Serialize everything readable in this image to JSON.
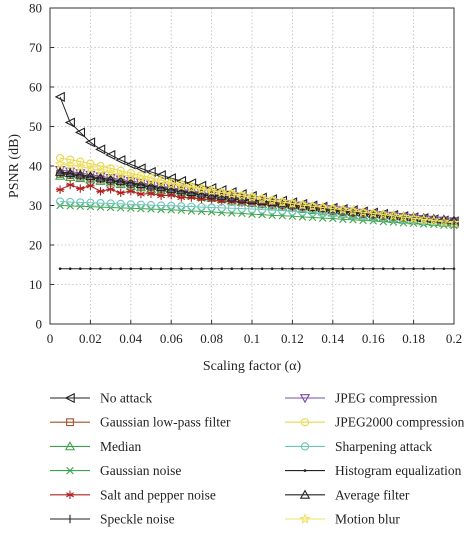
{
  "chart_data": {
    "type": "line",
    "xlabel": "Scaling factor (α)",
    "ylabel": "PSNR (dB)",
    "xlim": [
      0,
      0.2
    ],
    "ylim": [
      0,
      80
    ],
    "xticks": [
      0,
      0.02,
      0.04,
      0.06,
      0.08,
      0.1,
      0.12,
      0.14,
      0.16,
      0.18,
      0.2
    ],
    "xtick_labels": [
      "0",
      "0.02",
      "0.04",
      "0.06",
      "0.08",
      "0.1",
      "0.12",
      "0.14",
      "0.16",
      "0.18",
      "0.2"
    ],
    "yticks": [
      0,
      10,
      20,
      30,
      40,
      50,
      60,
      70,
      80
    ],
    "ytick_labels": [
      "0",
      "10",
      "20",
      "30",
      "40",
      "50",
      "60",
      "70",
      "80"
    ],
    "grid": true,
    "legend_position": "bottom",
    "x": [
      0.005,
      0.01,
      0.015,
      0.02,
      0.025,
      0.03,
      0.035,
      0.04,
      0.045,
      0.05,
      0.055,
      0.06,
      0.065,
      0.07,
      0.075,
      0.08,
      0.085,
      0.09,
      0.095,
      0.1,
      0.105,
      0.11,
      0.115,
      0.12,
      0.125,
      0.13,
      0.135,
      0.14,
      0.145,
      0.15,
      0.155,
      0.16,
      0.165,
      0.17,
      0.175,
      0.18,
      0.185,
      0.19,
      0.195,
      0.2
    ],
    "series": [
      {
        "name": "No attack",
        "marker": "tri-left",
        "color": "#222222",
        "values": [
          57.5,
          51.0,
          48.5,
          46.0,
          44.2,
          42.8,
          41.5,
          40.4,
          39.4,
          38.5,
          37.7,
          36.9,
          36.2,
          35.6,
          35.0,
          34.4,
          33.9,
          33.4,
          32.9,
          32.4,
          32.0,
          31.6,
          31.2,
          30.8,
          30.4,
          30.0,
          29.7,
          29.4,
          29.1,
          28.8,
          28.5,
          28.2,
          27.9,
          27.6,
          27.3,
          27.0,
          26.8,
          26.5,
          26.2,
          26.0
        ]
      },
      {
        "name": "Gaussian low-pass filter",
        "marker": "square",
        "color": "#a0522d",
        "values": [
          38.0,
          37.7,
          37.3,
          37.0,
          36.6,
          36.2,
          35.8,
          35.4,
          35.0,
          34.6,
          34.2,
          33.8,
          33.4,
          33.0,
          32.6,
          32.3,
          32.0,
          31.6,
          31.3,
          31.0,
          30.7,
          30.4,
          30.1,
          29.8,
          29.5,
          29.2,
          28.9,
          28.6,
          28.3,
          28.0,
          27.8,
          27.5,
          27.3,
          27.0,
          26.8,
          26.6,
          26.4,
          26.2,
          26.0,
          25.8
        ]
      },
      {
        "name": "Median",
        "marker": "tri-up",
        "color": "#3fa34d",
        "values": [
          37.5,
          37.2,
          36.9,
          36.6,
          36.2,
          35.8,
          35.4,
          35.0,
          34.6,
          34.2,
          33.8,
          33.4,
          33.0,
          32.6,
          32.2,
          31.9,
          31.6,
          31.2,
          30.9,
          30.6,
          30.3,
          30.0,
          29.7,
          29.4,
          29.1,
          28.8,
          28.5,
          28.2,
          27.9,
          27.6,
          27.4,
          27.1,
          26.9,
          26.6,
          26.4,
          26.2,
          26.0,
          25.8,
          25.6,
          25.4
        ]
      },
      {
        "name": "Gaussian noise",
        "marker": "x",
        "color": "#3fa34d",
        "values": [
          30.0,
          29.9,
          29.8,
          29.7,
          29.6,
          29.5,
          29.4,
          29.3,
          29.2,
          29.1,
          29.0,
          28.9,
          28.8,
          28.6,
          28.5,
          28.4,
          28.2,
          28.1,
          28.0,
          27.8,
          27.7,
          27.5,
          27.4,
          27.3,
          27.1,
          27.0,
          26.8,
          26.7,
          26.5,
          26.4,
          26.2,
          26.1,
          25.9,
          25.8,
          25.6,
          25.5,
          25.3,
          25.2,
          25.0,
          24.9
        ]
      },
      {
        "name": "Salt and pepper noise",
        "marker": "star6",
        "color": "#b22222",
        "values": [
          34.0,
          35.2,
          34.3,
          35.0,
          33.6,
          34.1,
          33.2,
          33.6,
          32.9,
          33.0,
          32.5,
          32.6,
          32.0,
          32.0,
          31.6,
          31.5,
          31.1,
          31.0,
          30.7,
          30.6,
          30.3,
          30.1,
          29.9,
          29.6,
          29.4,
          29.2,
          28.9,
          28.7,
          28.5,
          28.2,
          28.0,
          27.8,
          27.5,
          27.3,
          27.1,
          26.9,
          26.7,
          26.5,
          26.2,
          26.0
        ]
      },
      {
        "name": "Speckle noise",
        "marker": "plus",
        "color": "#222222",
        "values": [
          38.2,
          37.9,
          37.5,
          37.1,
          36.7,
          36.3,
          35.9,
          35.5,
          35.1,
          34.7,
          34.3,
          33.9,
          33.5,
          33.1,
          32.7,
          32.4,
          32.1,
          31.7,
          31.4,
          31.1,
          30.8,
          30.5,
          30.2,
          29.9,
          29.6,
          29.3,
          29.0,
          28.7,
          28.4,
          28.1,
          27.9,
          27.6,
          27.4,
          27.1,
          26.9,
          26.7,
          26.5,
          26.3,
          26.1,
          25.9
        ]
      },
      {
        "name": "JPEG compression",
        "marker": "tri-down",
        "color": "#7b4ea0",
        "values": [
          39.0,
          38.6,
          38.2,
          37.8,
          37.4,
          37.0,
          36.6,
          36.2,
          35.8,
          35.3,
          34.9,
          34.5,
          34.1,
          33.7,
          33.3,
          32.9,
          32.5,
          32.2,
          31.8,
          31.5,
          31.2,
          30.9,
          30.6,
          30.3,
          30.0,
          29.7,
          29.4,
          29.1,
          28.8,
          28.5,
          28.2,
          27.9,
          27.6,
          27.4,
          27.1,
          26.9,
          26.6,
          26.4,
          26.2,
          26.0
        ]
      },
      {
        "name": "JPEG2000 compression",
        "marker": "circle",
        "color": "#e8d84a",
        "values": [
          42.0,
          41.6,
          41.1,
          40.6,
          40.0,
          39.4,
          38.8,
          38.2,
          37.6,
          37.0,
          36.4,
          35.8,
          35.3,
          34.8,
          34.3,
          33.8,
          33.3,
          32.9,
          32.5,
          32.1,
          31.7,
          31.3,
          30.9,
          30.5,
          30.1,
          29.7,
          29.4,
          29.1,
          28.8,
          28.5,
          28.2,
          27.9,
          27.6,
          27.3,
          27.0,
          26.7,
          26.4,
          26.1,
          25.8,
          25.5
        ]
      },
      {
        "name": "Sharpening attack",
        "marker": "circle",
        "color": "#6cc7b8",
        "values": [
          31.0,
          30.9,
          30.8,
          30.7,
          30.6,
          30.5,
          30.4,
          30.3,
          30.2,
          30.1,
          30.0,
          29.9,
          29.8,
          29.7,
          29.6,
          29.5,
          29.4,
          29.3,
          29.2,
          29.1,
          29.0,
          28.8,
          28.7,
          28.5,
          28.4,
          28.2,
          28.0,
          27.9,
          27.7,
          27.5,
          27.3,
          27.1,
          26.9,
          26.7,
          26.5,
          26.3,
          26.1,
          25.9,
          25.7,
          25.5
        ]
      },
      {
        "name": "Histogram equalization",
        "marker": "dot",
        "color": "#222222",
        "values": [
          14.0,
          14.0,
          14.0,
          14.0,
          14.0,
          14.0,
          14.0,
          14.0,
          14.0,
          14.0,
          14.0,
          14.0,
          14.0,
          14.0,
          14.0,
          14.0,
          14.0,
          14.0,
          14.0,
          14.0,
          14.0,
          14.0,
          14.0,
          14.0,
          14.0,
          14.0,
          14.0,
          14.0,
          14.0,
          14.0,
          14.0,
          14.0,
          14.0,
          14.0,
          14.0,
          14.0,
          14.0,
          14.0,
          14.0,
          14.0
        ]
      },
      {
        "name": "Average filter",
        "marker": "tri-up",
        "color": "#222222",
        "values": [
          38.5,
          38.2,
          37.8,
          37.4,
          37.0,
          36.6,
          36.2,
          35.8,
          35.4,
          35.0,
          34.6,
          34.2,
          33.8,
          33.4,
          33.0,
          32.7,
          32.4,
          32.0,
          31.7,
          31.4,
          31.1,
          30.8,
          30.5,
          30.2,
          29.9,
          29.6,
          29.3,
          29.0,
          28.7,
          28.4,
          28.2,
          27.9,
          27.7,
          27.4,
          27.2,
          27.0,
          26.8,
          26.6,
          26.4,
          26.2
        ]
      },
      {
        "name": "Motion blur",
        "marker": "star5",
        "color": "#f0e060",
        "values": [
          40.5,
          40.2,
          39.8,
          39.3,
          38.8,
          38.3,
          37.8,
          37.3,
          36.8,
          36.3,
          35.8,
          35.3,
          34.9,
          34.5,
          34.1,
          33.7,
          33.3,
          32.9,
          32.5,
          32.1,
          31.7,
          31.3,
          30.9,
          30.5,
          30.1,
          29.8,
          29.5,
          29.2,
          28.9,
          28.6,
          28.3,
          28.0,
          27.7,
          27.4,
          27.1,
          26.8,
          26.5,
          26.2,
          25.9,
          25.6
        ]
      }
    ]
  }
}
